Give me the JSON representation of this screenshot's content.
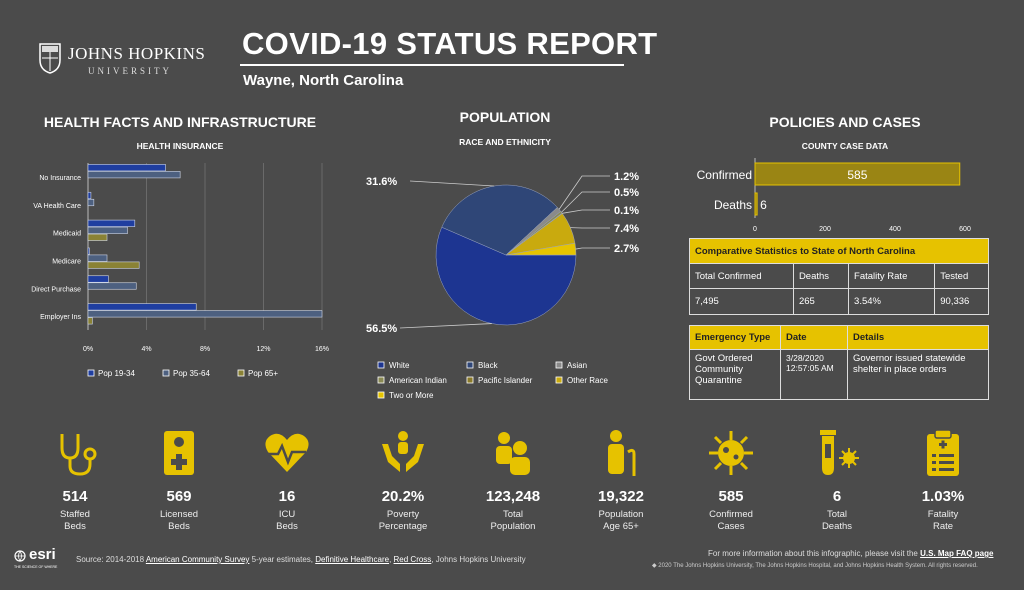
{
  "header": {
    "logo_name": "JOHNS HOPKINS",
    "logo_sub": "UNIVERSITY",
    "title": "COVID-19 STATUS REPORT",
    "location": "Wayne,  North Carolina"
  },
  "health": {
    "heading": "HEALTH FACTS AND INFRASTRUCTURE",
    "subheading": "HEALTH INSURANCE"
  },
  "population": {
    "heading": "POPULATION",
    "subheading": "RACE AND ETHNICITY"
  },
  "policies": {
    "heading": "POLICIES AND CASES",
    "subheading": "COUNTY CASE DATA"
  },
  "chart_data": [
    {
      "type": "bar",
      "orientation": "horizontal",
      "categories": [
        "No Insurance",
        "VA Health Care",
        "Medicaid",
        "Medicare",
        "Direct Purchase",
        "Employer Ins"
      ],
      "series": [
        {
          "name": "Pop 19-34",
          "color": "#1f3ea0",
          "values": [
            5.3,
            0.2,
            3.2,
            0.1,
            1.4,
            7.4
          ]
        },
        {
          "name": "Pop 35-64",
          "color": "#4d6080",
          "values": [
            6.3,
            0.4,
            2.7,
            1.3,
            3.3,
            16.0
          ]
        },
        {
          "name": "Pop 65+",
          "color": "#8a8235",
          "values": [
            0.0,
            0.0,
            1.3,
            3.5,
            0.0,
            0.3
          ]
        }
      ],
      "xlim": [
        0,
        16
      ],
      "xticks": [
        "0%",
        "4%",
        "8%",
        "12%",
        "16%"
      ],
      "legend_position": "bottom",
      "grid": true
    },
    {
      "type": "pie",
      "labels": [
        "White",
        "Black",
        "Asian",
        "American Indian",
        "Pacific Islander",
        "Other Race",
        "Two or More"
      ],
      "values": [
        56.5,
        31.6,
        1.2,
        0.5,
        0.1,
        7.4,
        2.7
      ],
      "colors": [
        "#1d3591",
        "#2f4677",
        "#8a8a8a",
        "#8a8a54",
        "#8a7a2a",
        "#c9aa0e",
        "#e6c400"
      ],
      "data_labels": [
        "56.5%",
        "31.6%",
        "1.2%",
        "0.5%",
        "0.1%",
        "7.4%",
        "2.7%"
      ],
      "legend_position": "bottom"
    },
    {
      "type": "bar",
      "orientation": "horizontal",
      "categories": [
        "Confirmed",
        "Deaths"
      ],
      "values": [
        585,
        6
      ],
      "data_labels": [
        "585",
        "6"
      ],
      "xlim": [
        0,
        600
      ],
      "xticks": [
        "0",
        "200",
        "400",
        "600"
      ],
      "color": "#9a8514"
    }
  ],
  "comparative": {
    "title": "Comparative Statistics to State of North Carolina",
    "headers": [
      "Total Confirmed",
      "Deaths",
      "Fatality Rate",
      "Tested"
    ],
    "values": [
      "7,495",
      "265",
      "3.54%",
      "90,336"
    ]
  },
  "emergency": {
    "headers": [
      "Emergency Type",
      "Date",
      "Details"
    ],
    "type": "Govt Ordered Community Quarantine",
    "date": "3/28/2020 12:57:05 AM",
    "details": "Governor issued statewide shelter in place orders"
  },
  "stats": [
    {
      "value": "514",
      "label1": "Staffed",
      "label2": "Beds",
      "icon": "stethoscope-icon"
    },
    {
      "value": "569",
      "label1": "Licensed",
      "label2": "Beds",
      "icon": "medical-card-icon"
    },
    {
      "value": "16",
      "label1": "ICU",
      "label2": "Beds",
      "icon": "heartbeat-icon"
    },
    {
      "value": "20.2%",
      "label1": "Poverty",
      "label2": "Percentage",
      "icon": "hands-people-icon"
    },
    {
      "value": "123,248",
      "label1": "Total",
      "label2": "Population",
      "icon": "family-icon"
    },
    {
      "value": "19,322",
      "label1": "Population",
      "label2": "Age 65+",
      "icon": "elderly-person-icon"
    },
    {
      "value": "585",
      "label1": "Confirmed",
      "label2": "Cases",
      "icon": "virus-icon"
    },
    {
      "value": "6",
      "label1": "Total",
      "label2": "Deaths",
      "icon": "test-tube-virus-icon"
    },
    {
      "value": "1.03%",
      "label1": "Fatality",
      "label2": "Rate",
      "icon": "clipboard-icon"
    }
  ],
  "footer": {
    "esri": "esri",
    "esri_tag": "THE SCIENCE OF WHERE",
    "source_prefix": "Source: 2014-2018 ",
    "source_link1": "American Community Survey",
    "source_mid": " 5-year estimates, ",
    "source_link2": "Definitive Healthcare",
    "source_sep": ", ",
    "source_link3": "Red Cross",
    "source_suffix": ", Johns Hopkins University",
    "more_info": "For more information about this infographic, please visit the ",
    "more_link": "U.S. Map FAQ page",
    "copyright": "◆ 2020 The Johns Hopkins University, The Johns Hopkins Hospital, and Johns Hopkins Health System. All rights reserved."
  },
  "colors": {
    "background": "#4b4b4b",
    "accent": "#e6c200"
  }
}
